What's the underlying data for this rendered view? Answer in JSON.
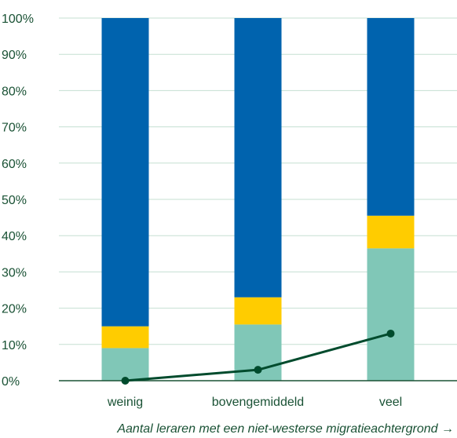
{
  "chart_data": {
    "type": "bar",
    "stacked": true,
    "categories": [
      "weinig",
      "bovengemiddeld",
      "veel"
    ],
    "series": [
      {
        "values": [
          9,
          15.5,
          36.5
        ],
        "color": "#80c7b7"
      },
      {
        "values": [
          6,
          7.5,
          9
        ],
        "color": "#ffcc00"
      },
      {
        "values": [
          85,
          77,
          54.5
        ],
        "color": "#0063ae"
      }
    ],
    "line": {
      "values": [
        0,
        3,
        13
      ],
      "color": "#004b2d"
    },
    "ylim": [
      0,
      100
    ],
    "yticks": [
      "0%",
      "10%",
      "20%",
      "30%",
      "40%",
      "50%",
      "60%",
      "70%",
      "80%",
      "90%",
      "100%"
    ],
    "xlabel": "Aantal leraren met een niet-westerse migratieachtergrond →",
    "ylabel": "",
    "title": "",
    "grid": true,
    "gridColor": "#c5dfd2",
    "axisColor": "#1a5235"
  }
}
